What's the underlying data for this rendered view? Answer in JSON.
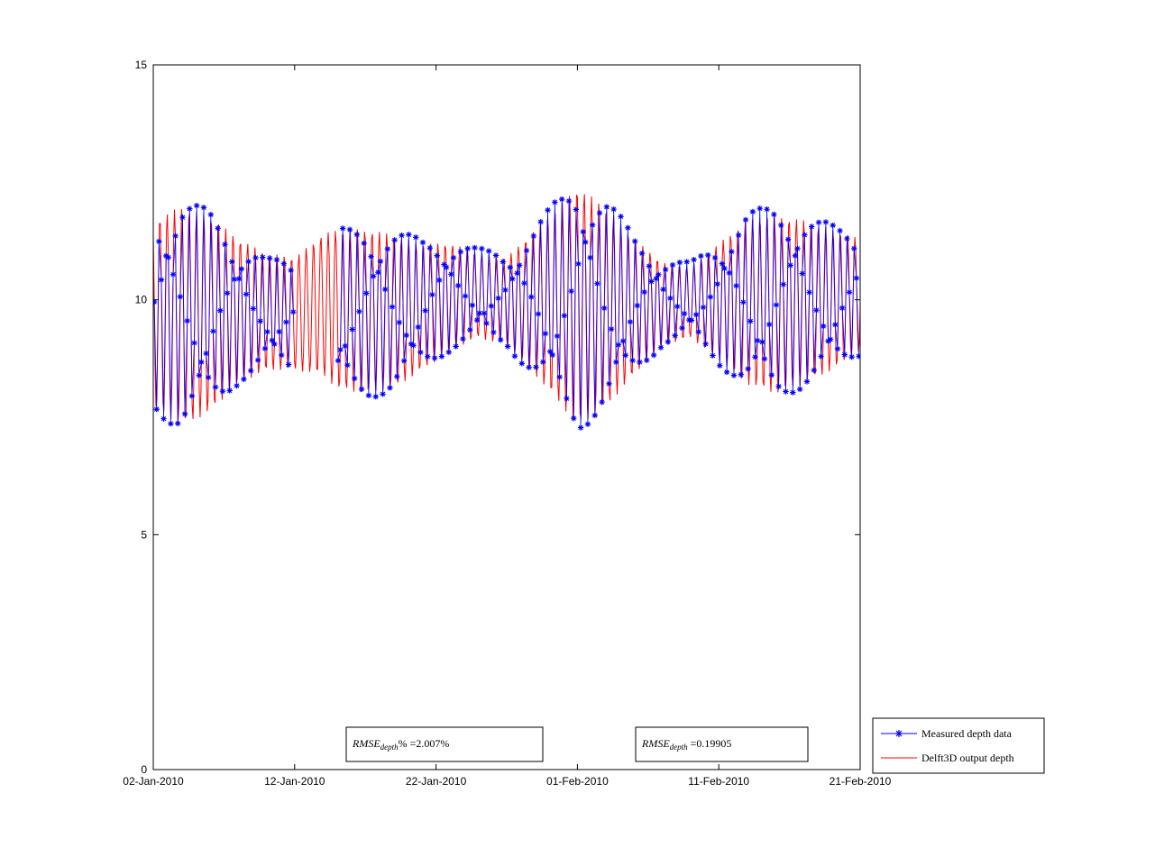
{
  "chart_data": {
    "type": "line",
    "xlabel": "",
    "ylabel": "",
    "x_range": [
      "2010-01-02",
      "2010-02-21"
    ],
    "ylim": [
      0,
      15
    ],
    "x_tick_labels": [
      "02-Jan-2010",
      "12-Jan-2010",
      "22-Jan-2010",
      "01-Feb-2010",
      "11-Feb-2010",
      "21-Feb-2010"
    ],
    "x_tick_dates": [
      "2010-01-02",
      "2010-01-12",
      "2010-01-22",
      "2010-02-01",
      "2010-02-11",
      "2010-02-21"
    ],
    "y_ticks": [
      0,
      5,
      10,
      15
    ],
    "grid": false,
    "legend_position": "outside-bottom-right",
    "series": [
      {
        "name": "Measured depth data",
        "color": "#0000ff",
        "marker": "asterisk",
        "line": "solid",
        "gaps": [
          [
            "2010-01-12",
            "2010-01-15"
          ]
        ],
        "envelope": {
          "dates": [
            "2010-01-02",
            "2010-01-04",
            "2010-01-06",
            "2010-01-08",
            "2010-01-10",
            "2010-01-12",
            "2010-01-15",
            "2010-01-17",
            "2010-01-19",
            "2010-01-21",
            "2010-01-23",
            "2010-01-25",
            "2010-01-27",
            "2010-01-29",
            "2010-01-31",
            "2010-02-01",
            "2010-02-03",
            "2010-02-05",
            "2010-02-07",
            "2010-02-09",
            "2010-02-11",
            "2010-02-13",
            "2010-02-15",
            "2010-02-17",
            "2010-02-19",
            "2010-02-21"
          ],
          "high": [
            11.8,
            12.2,
            11.9,
            11.3,
            10.9,
            10.8,
            11.5,
            11.6,
            11.5,
            11.3,
            11.3,
            11.1,
            11.0,
            11.6,
            12.3,
            12.7,
            12.2,
            11.4,
            10.9,
            10.8,
            11.3,
            11.9,
            12.0,
            11.9,
            11.6,
            11.4
          ],
          "low": [
            7.6,
            7.2,
            7.6,
            8.2,
            8.6,
            8.4,
            8.0,
            7.9,
            8.0,
            8.5,
            8.9,
            9.2,
            9.0,
            8.3,
            7.6,
            7.2,
            7.6,
            8.4,
            9.0,
            9.2,
            8.6,
            8.1,
            7.9,
            8.1,
            8.4,
            8.8
          ],
          "period_days": 0.5175,
          "samples_per_day": 6
        }
      },
      {
        "name": "Delft3D output depth",
        "color": "#ff0000",
        "marker": "none",
        "line": "solid",
        "envelope": {
          "dates": [
            "2010-01-02",
            "2010-01-04",
            "2010-01-06",
            "2010-01-08",
            "2010-01-10",
            "2010-01-12",
            "2010-01-14",
            "2010-01-15",
            "2010-01-17",
            "2010-01-19",
            "2010-01-21",
            "2010-01-23",
            "2010-01-25",
            "2010-01-27",
            "2010-01-29",
            "2010-01-31",
            "2010-02-01",
            "2010-02-03",
            "2010-02-05",
            "2010-02-07",
            "2010-02-09",
            "2010-02-11",
            "2010-02-13",
            "2010-02-15",
            "2010-02-17",
            "2010-02-19",
            "2010-02-21"
          ],
          "high": [
            11.7,
            12.0,
            11.8,
            11.3,
            11.0,
            10.9,
            11.4,
            11.5,
            11.5,
            11.4,
            11.2,
            11.2,
            11.0,
            10.9,
            11.5,
            12.1,
            12.4,
            12.0,
            11.3,
            10.8,
            10.7,
            11.2,
            11.7,
            11.8,
            11.7,
            11.5,
            11.3
          ],
          "low": [
            7.7,
            7.3,
            7.6,
            8.2,
            8.5,
            8.5,
            8.4,
            8.1,
            8.0,
            8.1,
            8.5,
            8.9,
            9.2,
            9.0,
            8.4,
            7.7,
            7.3,
            7.7,
            8.4,
            9.0,
            9.2,
            8.7,
            8.2,
            8.0,
            8.2,
            8.5,
            8.9
          ],
          "period_days": 0.5175,
          "samples_per_day": 16
        }
      }
    ],
    "annotations": [
      {
        "name": "rmse-percent",
        "lhs": "RMSE",
        "sub": "depth",
        "rest": "% =2.007%"
      },
      {
        "name": "rmse-abs",
        "lhs": "RMSE",
        "sub": "depth",
        "rest": " =0.19905"
      }
    ]
  }
}
